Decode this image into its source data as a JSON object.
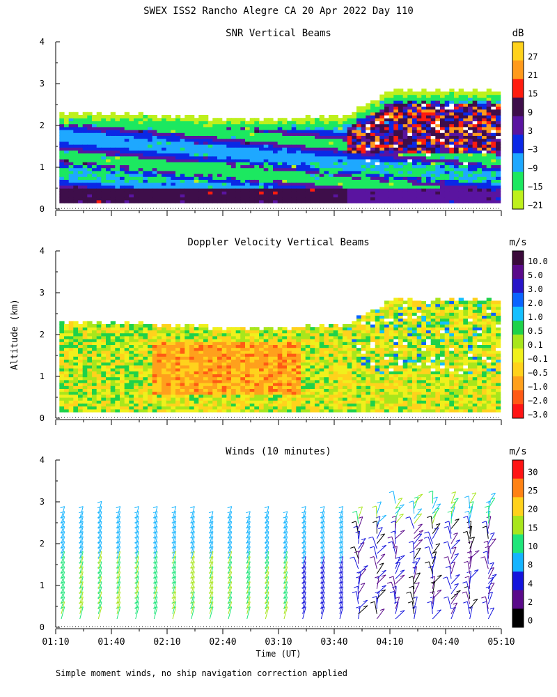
{
  "figure_title": "SWEX ISS2 Rancho Alegre CA  20 Apr 2022 Day 110",
  "y_axis_label": "Altitude (km)",
  "x_axis_label": "Time (UT)",
  "footnote": "Simple moment winds, no ship navigation correction applied",
  "chart_data": [
    {
      "type": "heatmap",
      "title": "SNR Vertical Beams",
      "xlabel": "",
      "ylabel": "Altitude (km)",
      "xlim": [
        70,
        310
      ],
      "ylim": [
        0,
        4
      ],
      "yticks": [
        "0",
        "1",
        "2",
        "3",
        "4"
      ],
      "xtick_minutes": [
        70,
        100,
        130,
        160,
        190,
        220,
        250,
        280,
        310
      ],
      "x_tick_labels_shown": false,
      "colorbar": {
        "unit": "dB",
        "labels": [
          "27",
          "21",
          "15",
          "9",
          "3",
          "−3",
          "−9",
          "−15",
          "−21"
        ],
        "colors": [
          "#ffd21c",
          "#ff9a1c",
          "#ff1c0e",
          "#3e0e4a",
          "#5a14a0",
          "#0a28e6",
          "#1ea8ff",
          "#1ce860",
          "#bef01c"
        ]
      }
    },
    {
      "type": "heatmap",
      "title": "Doppler Velocity Vertical Beams",
      "xlabel": "",
      "ylabel": "Altitude (km)",
      "xlim": [
        70,
        310
      ],
      "ylim": [
        0,
        4
      ],
      "yticks": [
        "0",
        "1",
        "2",
        "3",
        "4"
      ],
      "xtick_minutes": [
        70,
        100,
        130,
        160,
        190,
        220,
        250,
        280,
        310
      ],
      "x_tick_labels_shown": false,
      "colorbar": {
        "unit": "m/s",
        "labels": [
          "10.0",
          "5.0",
          "3.0",
          "2.0",
          "1.0",
          "0.5",
          "0.1",
          "−0.1",
          "−0.5",
          "−1.0",
          "−2.0",
          "−3.0"
        ],
        "colors": [
          "#3a0a3a",
          "#5a0a8a",
          "#2814c8",
          "#0a64ff",
          "#14c0ff",
          "#1ed24a",
          "#a8e61c",
          "#f0f01c",
          "#ffd21c",
          "#ffa01c",
          "#ff5a14",
          "#ff1414"
        ]
      }
    },
    {
      "type": "scatter",
      "title": "Winds (10 minutes)",
      "xlabel": "Time (UT)",
      "ylabel": "Altitude (km)",
      "xlim": [
        70,
        310
      ],
      "ylim": [
        0,
        4
      ],
      "yticks": [
        "0",
        "1",
        "2",
        "3",
        "4"
      ],
      "x": [
        "01:10",
        "01:40",
        "02:10",
        "02:40",
        "03:10",
        "03:40",
        "04:10",
        "04:40",
        "05:10"
      ],
      "xtick_minutes": [
        70,
        100,
        130,
        160,
        190,
        220,
        250,
        280,
        310
      ],
      "profile_times_min": [
        73,
        83,
        93,
        103,
        113,
        123,
        133,
        143,
        153,
        163,
        173,
        183,
        193,
        203,
        213,
        223,
        233,
        243,
        253,
        263,
        273,
        283,
        293,
        303
      ],
      "colorbar": {
        "unit": "m/s",
        "labels": [
          "30",
          "25",
          "20",
          "15",
          "10",
          "8",
          "4",
          "2",
          "0"
        ],
        "colors": [
          "#ff1414",
          "#ff8214",
          "#ffd21c",
          "#a8e61c",
          "#1ee67a",
          "#14b4ff",
          "#1414dc",
          "#5a0a8a",
          "#000000"
        ]
      }
    }
  ]
}
